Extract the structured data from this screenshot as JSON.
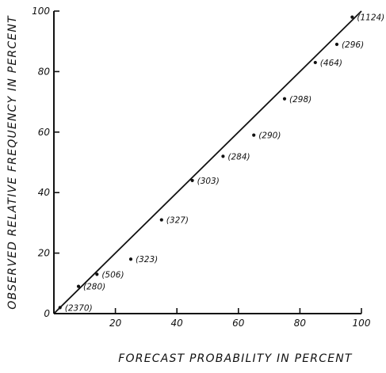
{
  "chart_data": {
    "type": "scatter",
    "title": "",
    "xlabel": "FORECAST PROBABILITY IN PERCENT",
    "ylabel": "OBSERVED RELATIVE FREQUENCY IN PERCENT",
    "xlim": [
      0,
      100
    ],
    "ylim": [
      0,
      100
    ],
    "x_ticks": [
      20,
      40,
      60,
      80,
      100
    ],
    "x_tick_labels": [
      "20",
      "40",
      "60",
      "80",
      "100"
    ],
    "y_ticks": [
      0,
      20,
      40,
      60,
      80,
      100
    ],
    "y_tick_labels": [
      "0",
      "20",
      "40",
      "60",
      "80",
      "100"
    ],
    "grid": false,
    "legend": false,
    "colors": {
      "ink": "#111111",
      "background": "#ffffff"
    },
    "reference_line": {
      "x": [
        0,
        100
      ],
      "y": [
        0,
        100
      ]
    },
    "points": [
      {
        "x": 2,
        "y": 2,
        "label": "(2370)"
      },
      {
        "x": 8,
        "y": 9,
        "label": "(280)"
      },
      {
        "x": 14,
        "y": 13,
        "label": "(506)"
      },
      {
        "x": 25,
        "y": 18,
        "label": "(323)"
      },
      {
        "x": 35,
        "y": 31,
        "label": "(327)"
      },
      {
        "x": 45,
        "y": 44,
        "label": "(303)"
      },
      {
        "x": 55,
        "y": 52,
        "label": "(284)"
      },
      {
        "x": 65,
        "y": 59,
        "label": "(290)"
      },
      {
        "x": 75,
        "y": 71,
        "label": "(298)"
      },
      {
        "x": 85,
        "y": 83,
        "label": "(464)"
      },
      {
        "x": 92,
        "y": 89,
        "label": "(296)"
      },
      {
        "x": 97,
        "y": 98,
        "label": "(1124)"
      }
    ]
  }
}
